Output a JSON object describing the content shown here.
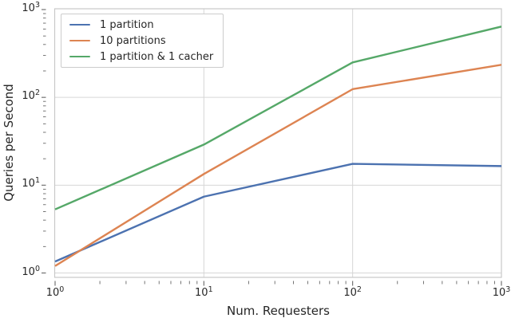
{
  "chart_data": {
    "type": "line",
    "title": "",
    "xlabel": "Num. Requesters",
    "ylabel": "Queries per Second",
    "x_scale": "log",
    "y_scale": "log",
    "xlim": [
      1,
      1000
    ],
    "ylim": [
      1,
      1000
    ],
    "x_ticks": [
      1,
      10,
      100,
      1000
    ],
    "y_ticks": [
      1,
      10,
      100,
      1000
    ],
    "grid": true,
    "legend_position": "upper-left",
    "x": [
      1,
      10,
      100,
      1000
    ],
    "series": [
      {
        "name": "1 partition",
        "color": "#4C72B0",
        "values": [
          1.35,
          7.4,
          17.5,
          16.5
        ]
      },
      {
        "name": "10 partitions",
        "color": "#DD8452",
        "values": [
          1.2,
          13.4,
          124,
          235
        ]
      },
      {
        "name": "1 partition & 1 cacher",
        "color": "#55A868",
        "values": [
          5.3,
          29,
          250,
          640
        ]
      }
    ]
  },
  "colors": {
    "background": "#ffffff",
    "grid": "#d6d6d6",
    "spine": "#c8c8c8",
    "tick": "#666666",
    "text": "#262626",
    "legend_border": "#cccccc"
  }
}
